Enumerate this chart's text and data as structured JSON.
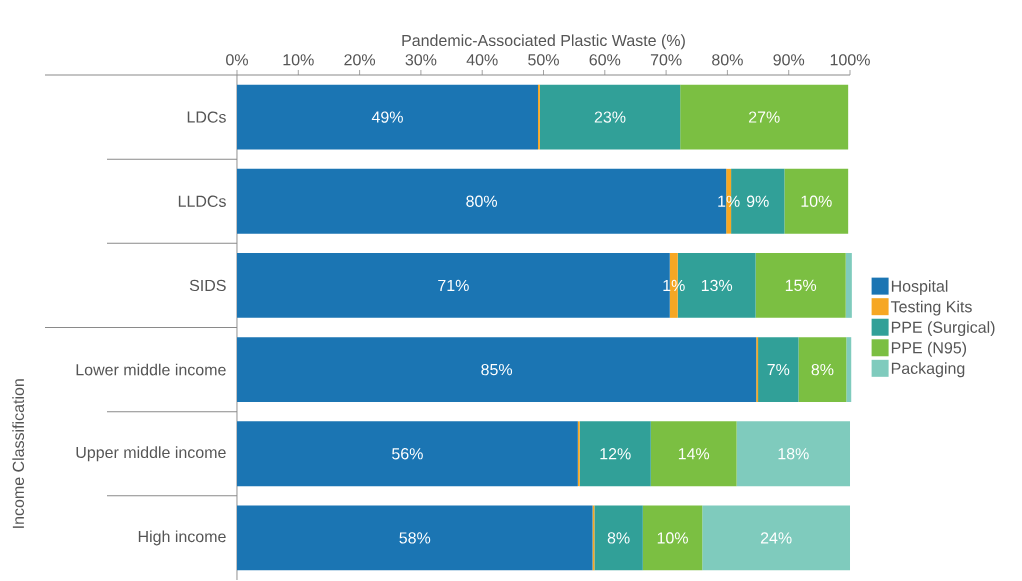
{
  "chart_data": {
    "type": "bar",
    "orientation": "horizontal",
    "stacked": true,
    "xlabel": "Pandemic-Associated Plastic Waste (%)",
    "ylabel": "Income Classification",
    "categories": [
      "LDCs",
      "LLDCs",
      "SIDS",
      "Lower middle income",
      "Upper middle income",
      "High income"
    ],
    "series": [
      {
        "name": "Hospital",
        "color": "#1b75b3",
        "values": [
          49.1,
          79.8,
          70.6,
          84.7,
          55.6,
          58.0
        ],
        "value_labels": [
          "49%",
          "80%",
          "71%",
          "85%",
          "56%",
          "58%"
        ]
      },
      {
        "name": "Testing Kits",
        "color": "#f6a723",
        "values": [
          0.3,
          0.8,
          1.3,
          0.3,
          0.3,
          0.3
        ],
        "value_labels": [
          null,
          "1%",
          "1%",
          null,
          null,
          null
        ]
      },
      {
        "name": "PPE (Surgical)",
        "color": "#31a098",
        "values": [
          22.9,
          8.7,
          12.7,
          6.6,
          11.6,
          7.9
        ],
        "value_labels": [
          "23%",
          "9%",
          "13%",
          "7%",
          "12%",
          "8%"
        ]
      },
      {
        "name": "PPE (N95)",
        "color": "#7bbf42",
        "values": [
          27.4,
          10.4,
          14.7,
          7.8,
          14.0,
          9.7
        ],
        "value_labels": [
          "27%",
          "10%",
          "15%",
          "8%",
          "14%",
          "10%"
        ]
      },
      {
        "name": "Packaging",
        "color": "#7fcbbd",
        "values": [
          0,
          0,
          1.0,
          0.8,
          18.5,
          24.1
        ],
        "value_labels": [
          null,
          null,
          null,
          null,
          "18%",
          "24%"
        ]
      }
    ],
    "xlim": [
      0,
      100
    ],
    "xticks": [
      {
        "value": 0,
        "label": "0%"
      },
      {
        "value": 10,
        "label": "10%"
      },
      {
        "value": 20,
        "label": "20%"
      },
      {
        "value": 30,
        "label": "30%"
      },
      {
        "value": 40,
        "label": "40%"
      },
      {
        "value": 50,
        "label": "50%"
      },
      {
        "value": 60,
        "label": "60%"
      },
      {
        "value": 70,
        "label": "70%"
      },
      {
        "value": 80,
        "label": "80%"
      },
      {
        "value": 90,
        "label": "90%"
      },
      {
        "value": 100,
        "label": "100%"
      }
    ],
    "legend": "right"
  }
}
